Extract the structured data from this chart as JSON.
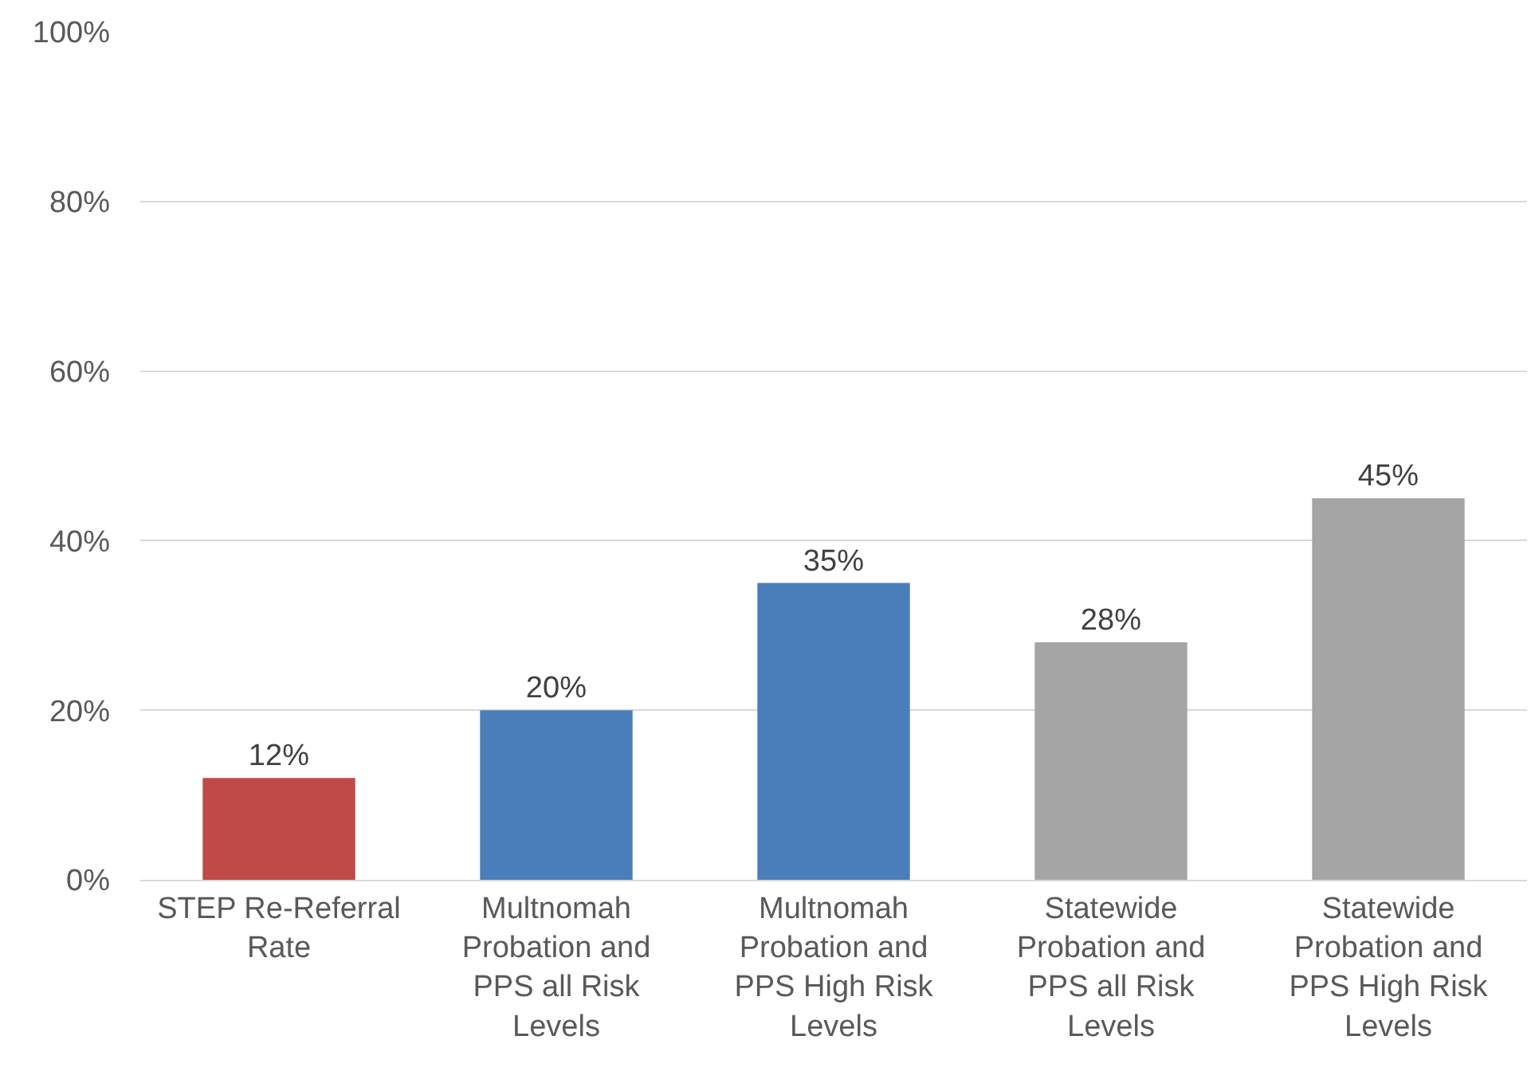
{
  "chart_data": {
    "type": "bar",
    "categories": [
      "STEP Re-Referral Rate",
      "Multnomah Probation and PPS all Risk Levels",
      "Multnomah Probation and PPS High Risk Levels",
      "Statewide Probation and PPS all Risk Levels",
      "Statewide Probation and PPS High Risk Levels"
    ],
    "values": [
      12,
      20,
      35,
      28,
      45
    ],
    "colors": [
      "#be4b48",
      "#4a7ebb",
      "#4a7ebb",
      "#a5a5a5",
      "#a5a5a5"
    ],
    "value_labels": [
      "12%",
      "20%",
      "35%",
      "28%",
      "45%"
    ],
    "ylim": [
      0,
      100
    ],
    "yticks": [
      {
        "value": 0,
        "label": "0%"
      },
      {
        "value": 20,
        "label": "20%"
      },
      {
        "value": 40,
        "label": "40%"
      },
      {
        "value": 60,
        "label": "60%"
      },
      {
        "value": 80,
        "label": "80%"
      },
      {
        "value": 100,
        "label": "100%"
      }
    ],
    "grid": "y"
  }
}
